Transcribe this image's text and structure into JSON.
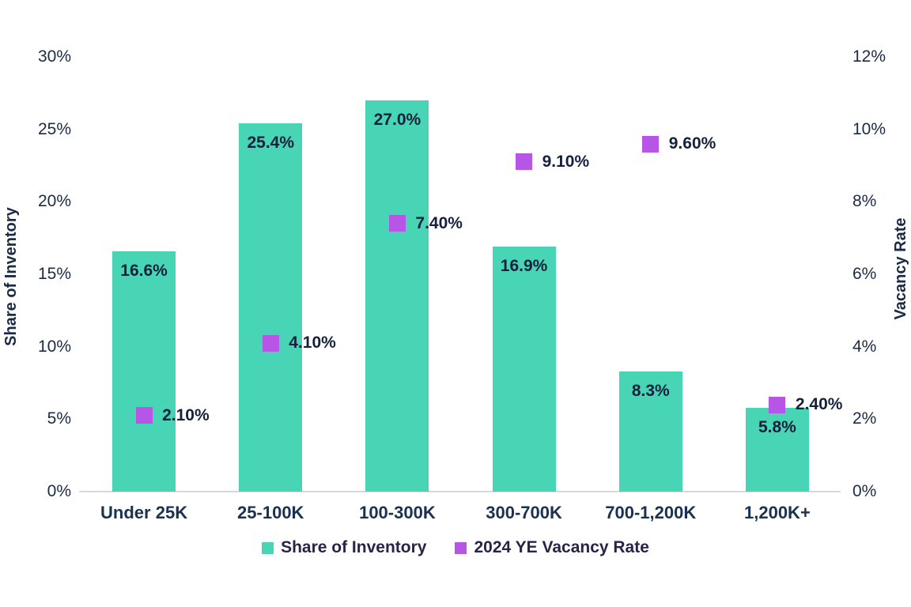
{
  "colors": {
    "bar": "#48D5B5",
    "marker": "#B655E6",
    "tick_text": "#1B2A46",
    "data_label_text": "#15213C",
    "category_text": "#1B3150",
    "legend_text": "#2A2347",
    "axis_line": "#D9D9D9",
    "background": "#FFFFFF"
  },
  "chart_data": {
    "type": "bar",
    "subtype": "bar-with-scatter-markers-dual-axis",
    "grid": false,
    "legend_position": "bottom-center",
    "categories": [
      "Under 25K",
      "25-100K",
      "100-300K",
      "300-700K",
      "700-1,200K",
      "1,200K+"
    ],
    "series": [
      {
        "name": "Share of Inventory",
        "type": "bar",
        "axis": "left",
        "color": "#48D5B5",
        "values": [
          16.6,
          25.4,
          27.0,
          16.9,
          8.3,
          5.8
        ],
        "labels": [
          "16.6%",
          "25.4%",
          "27.0%",
          "16.9%",
          "8.3%",
          "5.8%"
        ]
      },
      {
        "name": "2024 YE Vacancy Rate",
        "type": "scatter",
        "marker": "square",
        "axis": "right",
        "color": "#B655E6",
        "values": [
          2.1,
          4.1,
          7.4,
          9.1,
          9.6,
          2.4
        ],
        "labels": [
          "2.10%",
          "4.10%",
          "7.40%",
          "9.10%",
          "9.60%",
          "2.40%"
        ]
      }
    ],
    "left_axis": {
      "title": "Share of Inventory",
      "min": 0,
      "max": 30,
      "ticks": [
        "0%",
        "5%",
        "10%",
        "15%",
        "20%",
        "25%",
        "30%"
      ]
    },
    "right_axis": {
      "title": "Vacancy Rate",
      "min": 0,
      "max": 12,
      "ticks": [
        "0%",
        "2%",
        "4%",
        "6%",
        "8%",
        "10%",
        "12%"
      ]
    },
    "legend": [
      {
        "label": "Share of Inventory",
        "color": "#48D5B5"
      },
      {
        "label": "2024 YE Vacancy Rate",
        "color": "#B655E6"
      }
    ]
  }
}
